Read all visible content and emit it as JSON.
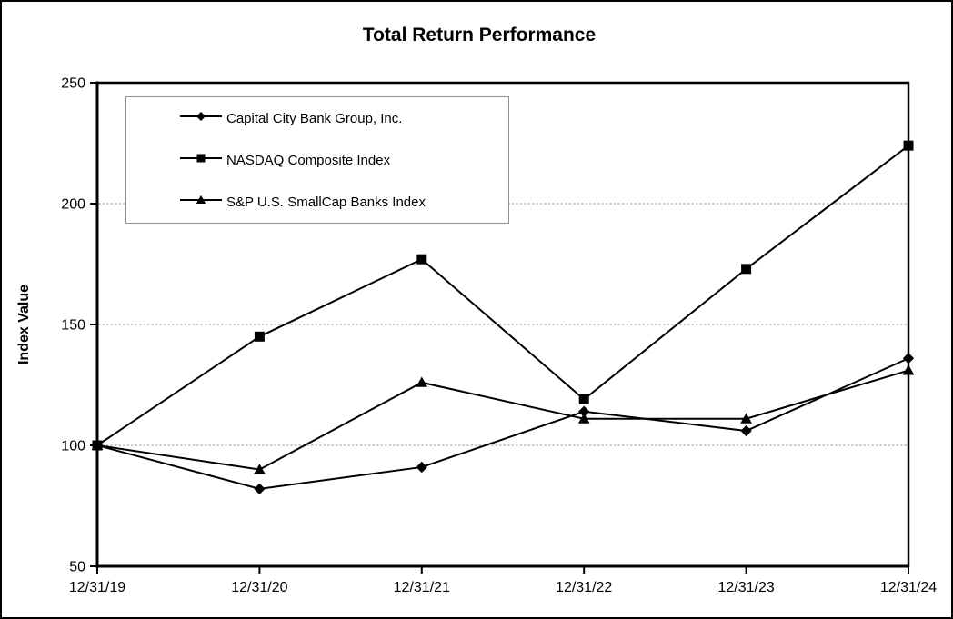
{
  "title": "Total Return Performance",
  "chart_data": {
    "type": "line",
    "title": "Total Return Performance",
    "x": [
      "12/31/19",
      "12/31/20",
      "12/31/21",
      "12/31/22",
      "12/31/23",
      "12/31/24"
    ],
    "series": [
      {
        "name": "Capital City Bank Group, Inc.",
        "marker": "diamond",
        "color": "#000000",
        "values": [
          100,
          82,
          91,
          114,
          106,
          136
        ]
      },
      {
        "name": "NASDAQ Composite Index",
        "marker": "square",
        "color": "#000000",
        "values": [
          100,
          145,
          177,
          119,
          173,
          224
        ]
      },
      {
        "name": "S&P U.S. SmallCap Banks Index",
        "marker": "triangle",
        "color": "#000000",
        "values": [
          100,
          90,
          126,
          111,
          111,
          131
        ]
      }
    ],
    "xlabel": "",
    "ylabel": "Index Value",
    "ylim": [
      50,
      250
    ],
    "yticks": [
      50,
      100,
      150,
      200,
      250
    ],
    "grid": true,
    "grid_color": "#999999",
    "axis_color": "#000000",
    "legend_position": "upper-left-inside",
    "legend_border_color": "#909090"
  }
}
